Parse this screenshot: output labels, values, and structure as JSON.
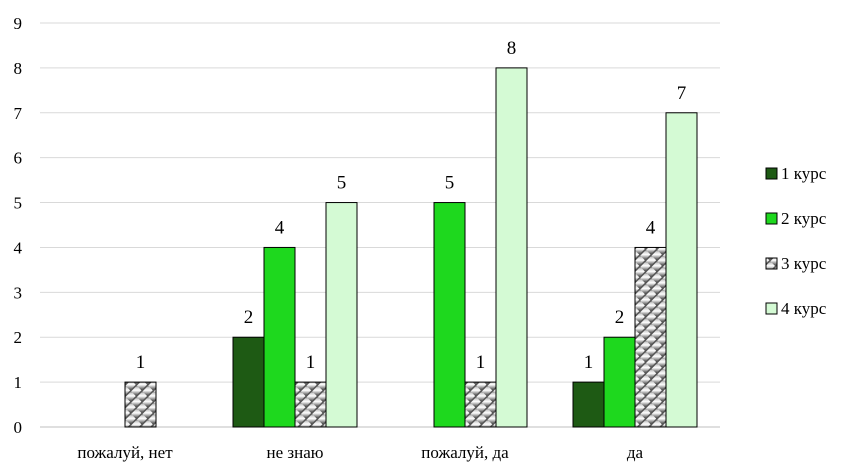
{
  "chart_data": {
    "type": "bar",
    "categories": [
      "пожалуй, нет",
      "не знаю",
      "пожалуй, да",
      "да"
    ],
    "series": [
      {
        "name": "1 курс",
        "values": [
          null,
          2,
          null,
          1
        ]
      },
      {
        "name": "2 курс",
        "values": [
          null,
          4,
          5,
          2
        ]
      },
      {
        "name": "3 курс",
        "values": [
          1,
          1,
          1,
          4
        ]
      },
      {
        "name": "4 курс",
        "values": [
          null,
          5,
          8,
          7
        ]
      }
    ],
    "title": "",
    "xlabel": "",
    "ylabel": "",
    "ylim": [
      0,
      9
    ],
    "yticks": [
      "0",
      "1",
      "2",
      "3",
      "4",
      "5",
      "6",
      "7",
      "8",
      "9"
    ],
    "grid": true,
    "legend": "right",
    "colors": {
      "1 курс": "#1e5a14",
      "2 курс": "#1ed81e",
      "3 курс": "#a8a8a8",
      "4 курс": "#d4fad4"
    }
  }
}
